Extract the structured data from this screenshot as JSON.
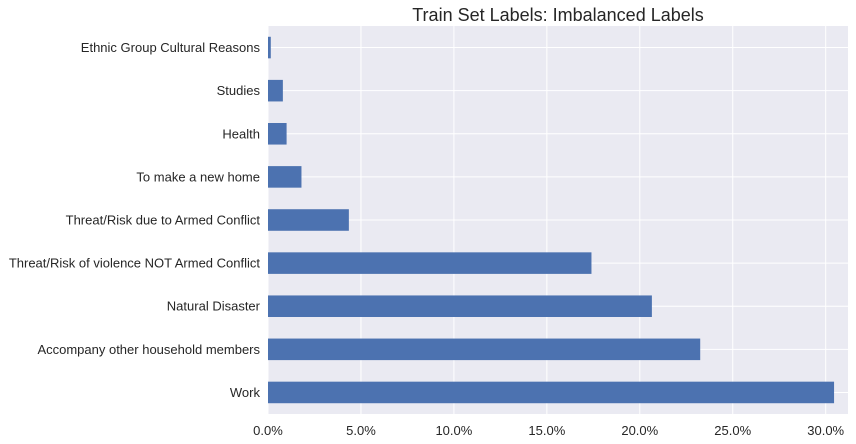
{
  "chart_data": {
    "type": "bar",
    "orientation": "horizontal",
    "title": "Train Set Labels: Imbalanced Labels",
    "xlabel": "",
    "ylabel": "",
    "categories": [
      "Ethnic Group Cultural Reasons",
      "Studies",
      "Health",
      "To make a new home",
      "Threat/Risk due to Armed Conflict",
      "Threat/Risk of violence NOT Armed Conflict",
      "Natural Disaster",
      "Accompany other household members",
      "Work"
    ],
    "values": [
      0.15,
      0.8,
      1.0,
      1.8,
      4.35,
      17.4,
      20.65,
      23.25,
      30.45
    ],
    "xlim": [
      0,
      31.2
    ],
    "xticks": [
      0,
      5,
      10,
      15,
      20,
      25,
      30
    ],
    "xtick_labels": [
      "0.0%",
      "5.0%",
      "10.0%",
      "15.0%",
      "20.0%",
      "25.0%",
      "30.0%"
    ],
    "grid": true,
    "colors": {
      "bar": "#4c72b0",
      "plot_background": "#eaeaf2",
      "grid": "#ffffff"
    }
  }
}
